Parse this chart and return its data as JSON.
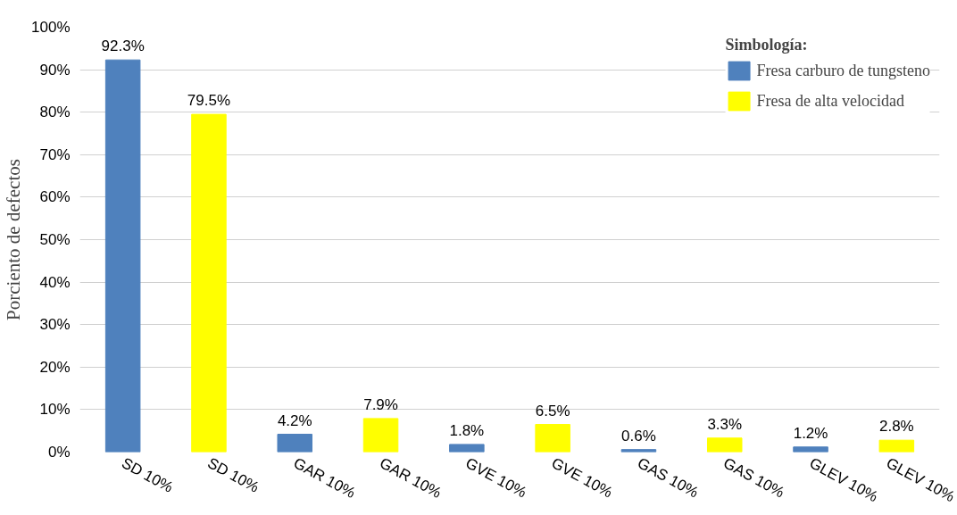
{
  "chart_data": {
    "type": "bar",
    "ylabel": "Porciento de defectos",
    "legend_title": "Simbología:",
    "categories": [
      "SD 10%",
      "SD 10%",
      "GAR 10%",
      "GAR 10%",
      "GVE 10%",
      "GVE 10%",
      "GAS 10%",
      "GAS 10%",
      "GLEV 10%",
      "GLEV 10%"
    ],
    "series": [
      {
        "name": "Fresa carburo de tungsteno",
        "color": "#4f81bd",
        "values": [
          92.3,
          null,
          4.2,
          null,
          1.8,
          null,
          0.6,
          null,
          1.2,
          null
        ],
        "value_labels": [
          "92.3%",
          null,
          "4.2%",
          null,
          "1.8%",
          null,
          "0.6%",
          null,
          "1.2%",
          null
        ]
      },
      {
        "name": "Fresa de alta velocidad",
        "color": "#ffff00",
        "values": [
          null,
          79.5,
          null,
          7.9,
          null,
          6.5,
          null,
          3.3,
          null,
          2.8
        ],
        "value_labels": [
          null,
          "79.5%",
          null,
          "7.9%",
          null,
          "6.5%",
          null,
          "3.3%",
          null,
          "2.8%"
        ]
      }
    ],
    "ylim": [
      0,
      100
    ],
    "yticks": [
      {
        "value": 0,
        "label": "0%"
      },
      {
        "value": 10,
        "label": "10%"
      },
      {
        "value": 20,
        "label": "20%"
      },
      {
        "value": 30,
        "label": "30%"
      },
      {
        "value": 40,
        "label": "40%"
      },
      {
        "value": 50,
        "label": "50%"
      },
      {
        "value": 60,
        "label": "60%"
      },
      {
        "value": 70,
        "label": "70%"
      },
      {
        "value": 80,
        "label": "80%"
      },
      {
        "value": 90,
        "label": "90%"
      },
      {
        "value": 100,
        "label": "100%"
      }
    ],
    "grid": "y",
    "legend": "top right"
  }
}
